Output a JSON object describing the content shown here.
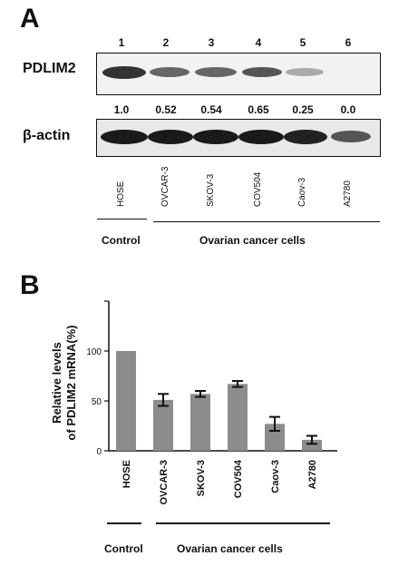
{
  "panel_a": {
    "letter": "A",
    "lane_numbers": [
      "1",
      "2",
      "3",
      "4",
      "5",
      "6"
    ],
    "pdlim2_label": "PDLIM2",
    "actin_label": "β-actin",
    "ratios": [
      "1.0",
      "0.52",
      "0.54",
      "0.65",
      "0.25",
      "0.0"
    ],
    "cell_lines": [
      "HOSE",
      "OVCAR-3",
      "SKOV-3",
      "COV504",
      "Caov-3",
      "A2780"
    ],
    "control_label": "Control",
    "cancer_label": "Ovarian cancer cells"
  },
  "panel_b": {
    "letter": "B",
    "control_label": "Control",
    "cancer_label": "Ovarian cancer cells"
  },
  "chart_data": {
    "type": "bar",
    "categories": [
      "HOSE",
      "OVCAR-3",
      "SKOV-3",
      "COV504",
      "Caov-3",
      "A2780"
    ],
    "values": [
      100,
      51,
      57,
      67,
      27,
      11
    ],
    "errors": [
      0,
      6,
      3,
      3,
      7,
      4
    ],
    "ylabel": "Relative levels of PDLIM2 mRNA(%)",
    "ylabel_lines": [
      "Relative levels",
      "of PDLIM2 mRNA(%)"
    ],
    "yticks": [
      "0",
      "50",
      "100"
    ],
    "ylim": [
      0,
      150
    ],
    "bar_color": "#8c8c8c",
    "grid": false
  }
}
